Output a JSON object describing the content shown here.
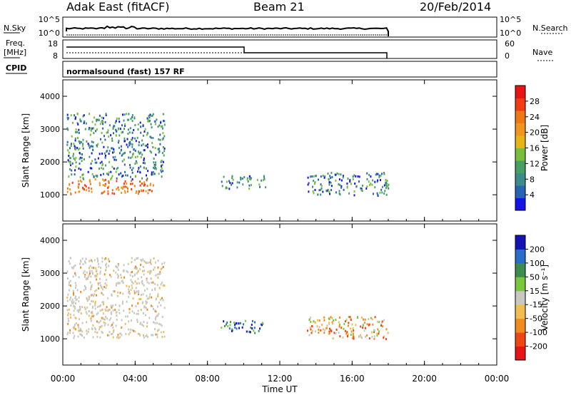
{
  "header": {
    "station": "Adak East (fitACF)",
    "beam": "Beam 21",
    "date": "20/Feb/2014"
  },
  "sky_panel": {
    "ylabel": "N.Sky",
    "ytick_top": "10^5",
    "ytick_bottom": "10^0",
    "rlabel": "N.Search",
    "rtick_top": "10^5",
    "rtick_bottom": "10^0"
  },
  "freq_panel": {
    "ylabel_1": "Freq.",
    "ylabel_2": "[MHz]",
    "ytick_top": "18",
    "ytick_bottom": "8",
    "rlabel": "Nave",
    "rtick_top": "60",
    "rtick_bottom": "0",
    "cpid_label": "CPID",
    "cpid_text": "normalsound (fast) 157 RF"
  },
  "colors": {
    "power_scale": [
      "#1414e6",
      "#2864b4",
      "#3c8c8c",
      "#46a064",
      "#78be3c",
      "#e6b414",
      "#f0961e",
      "#f07814",
      "#f03c14",
      "#e61414"
    ],
    "velocity_scale": [
      "#e61414",
      "#f04614",
      "#f08c1e",
      "#f0be50",
      "#c8c8c0",
      "#78c83c",
      "#3c8c50",
      "#286ec8",
      "#1414b4"
    ]
  },
  "chart_data": [
    {
      "type": "heatmap",
      "title": "Power",
      "ylabel": "Slant Range [km]",
      "yticks": [
        1000,
        2000,
        3000,
        4000
      ],
      "ylim": [
        200,
        4500
      ],
      "xlim": [
        0,
        24
      ],
      "colorbar": {
        "label": "Power [dB]",
        "ticks": [
          "4",
          "8",
          "12",
          "16",
          "20",
          "24",
          "28"
        ],
        "range": [
          0,
          32
        ]
      },
      "features": [
        {
          "t_start": 0.2,
          "t_end": 5.0,
          "range_start": 1050,
          "range_end": 1500,
          "level": "high"
        },
        {
          "t_start": 0.2,
          "t_end": 5.6,
          "range_start": 1500,
          "range_end": 3500,
          "level": "low"
        },
        {
          "t_start": 8.7,
          "t_end": 11.2,
          "range_start": 1200,
          "range_end": 1600,
          "level": "low"
        },
        {
          "t_start": 13.5,
          "t_end": 18.0,
          "range_start": 1000,
          "range_end": 1700,
          "level": "low"
        }
      ]
    },
    {
      "type": "heatmap",
      "title": "Velocity",
      "ylabel": "Slant Range [km]",
      "yticks": [
        1000,
        2000,
        3000,
        4000
      ],
      "ylim": [
        200,
        4500
      ],
      "xlim": [
        0,
        24
      ],
      "xlabel": "Time UT",
      "xticks": [
        "00:00",
        "04:00",
        "08:00",
        "12:00",
        "16:00",
        "20:00",
        "00:00"
      ],
      "colorbar": {
        "label": "Velocity [m s^-1]",
        "ticks": [
          "-200",
          "-100",
          "-50",
          "-15",
          "15",
          "50",
          "100",
          "200"
        ],
        "range": [
          -250,
          250
        ]
      },
      "features": [
        {
          "t_start": 0.2,
          "t_end": 5.6,
          "range_start": 1050,
          "range_end": 3500,
          "level": "ground"
        },
        {
          "t_start": 8.7,
          "t_end": 11.2,
          "range_start": 1200,
          "range_end": 1600,
          "level": "toward"
        },
        {
          "t_start": 13.5,
          "t_end": 18.0,
          "range_start": 1000,
          "range_end": 1700,
          "level": "away"
        }
      ]
    }
  ]
}
